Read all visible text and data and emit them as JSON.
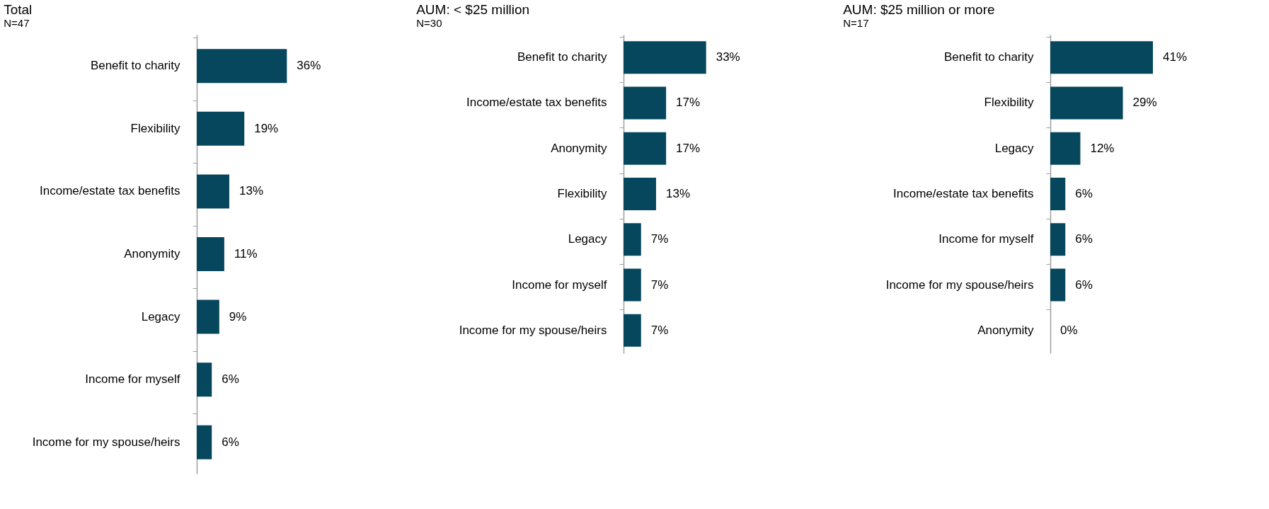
{
  "chart_data": [
    {
      "type": "bar",
      "orientation": "horizontal",
      "title": "Total",
      "subtitle": "N=47",
      "color": "#06475e",
      "categories": [
        "Benefit to charity",
        "Flexibility",
        "Income/estate tax benefits",
        "Anonymity",
        "Legacy",
        "Income for myself",
        "Income for my spouse/heirs"
      ],
      "values": [
        36,
        19,
        13,
        11,
        9,
        6,
        6
      ],
      "value_labels": [
        "36%",
        "19%",
        "13%",
        "11%",
        "9%",
        "6%",
        "6%"
      ]
    },
    {
      "type": "bar",
      "orientation": "horizontal",
      "title": "AUM: < $25 million",
      "subtitle": "N=30",
      "color": "#06475e",
      "categories": [
        "Benefit to charity",
        "Income/estate tax benefits",
        "Anonymity",
        "Flexibility",
        "Legacy",
        "Income for myself",
        "Income for my spouse/heirs"
      ],
      "values": [
        33,
        17,
        17,
        13,
        7,
        7,
        7
      ],
      "value_labels": [
        "33%",
        "17%",
        "17%",
        "13%",
        "7%",
        "7%",
        "7%"
      ]
    },
    {
      "type": "bar",
      "orientation": "horizontal",
      "title": "AUM: $25 million or more",
      "subtitle": "N=17",
      "color": "#06475e",
      "categories": [
        "Benefit to charity",
        "Flexibility",
        "Legacy",
        "Income/estate tax benefits",
        "Income for myself",
        "Income for my spouse/heirs",
        "Anonymity"
      ],
      "values": [
        41,
        29,
        12,
        6,
        6,
        6,
        0
      ],
      "value_labels": [
        "41%",
        "29%",
        "12%",
        "6%",
        "6%",
        "6%",
        "0%"
      ]
    }
  ]
}
